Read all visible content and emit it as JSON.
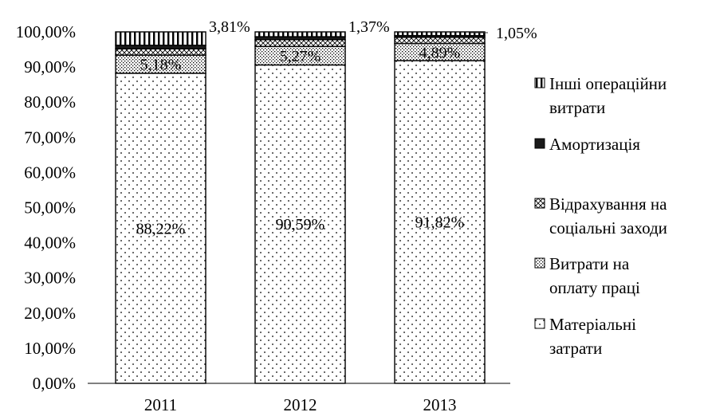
{
  "chart_data": {
    "type": "bar",
    "stacked": true,
    "categories": [
      "2011",
      "2012",
      "2013"
    ],
    "ylim": [
      0,
      100
    ],
    "yticks": [
      "0,00%",
      "10,00%",
      "20,00%",
      "30,00%",
      "40,00%",
      "50,00%",
      "60,00%",
      "70,00%",
      "80,00%",
      "90,00%",
      "100,00%"
    ],
    "grid": false,
    "legend_position": "right",
    "series": [
      {
        "name": "Матеріальні затрати",
        "legend_lines": [
          "Матеріальні",
          "затрати"
        ],
        "values": [
          88.22,
          90.59,
          91.82
        ],
        "pattern": "dots"
      },
      {
        "name": "Витрати на оплату праці",
        "legend_lines": [
          "Витрати на",
          "оплату праці"
        ],
        "values": [
          5.18,
          5.27,
          4.89
        ],
        "pattern": "dense-dots"
      },
      {
        "name": "Відрахування на соціальні заходи",
        "legend_lines": [
          "Відрахування на",
          "соціальні заходи"
        ],
        "values": [
          1.79,
          1.92,
          1.74
        ],
        "pattern": "crosshatch"
      },
      {
        "name": "Амортизація",
        "legend_lines": [
          "Амортизація"
        ],
        "values": [
          1.0,
          0.85,
          0.5
        ],
        "pattern": "solid-black"
      },
      {
        "name": "Інші операційни витрати",
        "legend_lines": [
          "Інші операційни",
          "витрати"
        ],
        "values": [
          3.81,
          1.37,
          1.05
        ],
        "pattern": "vertical-lines"
      }
    ],
    "data_labels": [
      {
        "category": "2011",
        "series": "Матеріальні затрати",
        "text": "88,22%"
      },
      {
        "category": "2012",
        "series": "Матеріальні затрати",
        "text": "90,59%"
      },
      {
        "category": "2013",
        "series": "Матеріальні затрати",
        "text": "91,82%"
      },
      {
        "category": "2011",
        "series": "Витрати на оплату праці",
        "text": "5,18%"
      },
      {
        "category": "2012",
        "series": "Витрати на оплату праці",
        "text": "5,27%"
      },
      {
        "category": "2013",
        "series": "Витрати на оплату праці",
        "text": "4,89%"
      },
      {
        "category": "2011",
        "series": "Інші операційни витрати",
        "text": "3,81%"
      },
      {
        "category": "2012",
        "series": "Інші операційни витрати",
        "text": "1,37%"
      },
      {
        "category": "2013",
        "series": "Інші операційни витрати",
        "text": "1,05%"
      }
    ],
    "colors": {
      "stroke": "#000000",
      "fill": "#ffffff"
    }
  }
}
